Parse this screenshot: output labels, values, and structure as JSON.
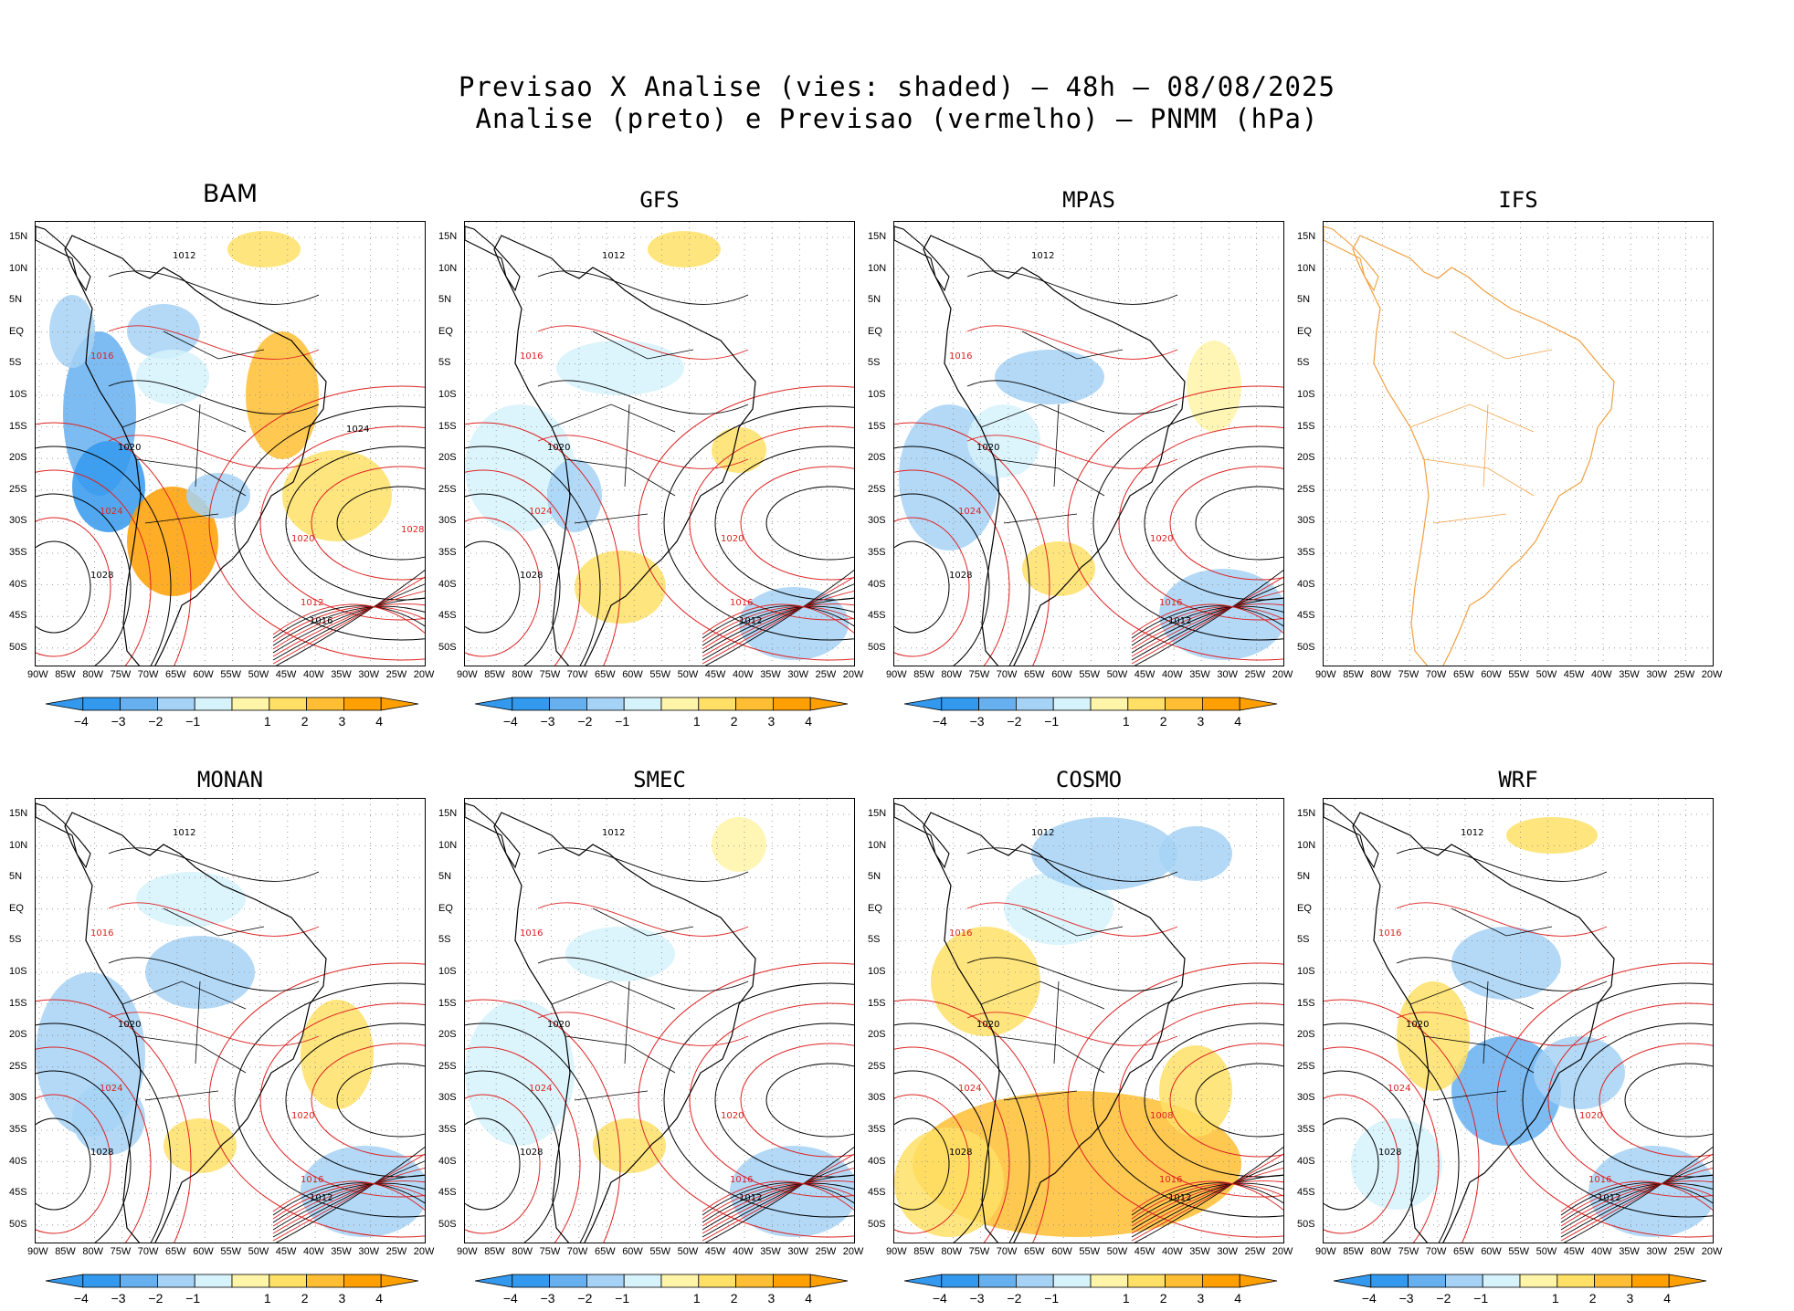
{
  "header": {
    "line1": "Previsao X Analise (vies: shaded) – 48h – 08/08/2025",
    "line2": "Analise (preto) e Previsao (vermelho) – PNMM (hPa)"
  },
  "lat_labels": [
    "15N",
    "10N",
    "5N",
    "EQ",
    "5S",
    "10S",
    "15S",
    "20S",
    "25S",
    "30S",
    "35S",
    "40S",
    "45S",
    "50S"
  ],
  "lon_labels": [
    "90W",
    "85W",
    "80W",
    "75W",
    "70W",
    "65W",
    "60W",
    "55W",
    "50W",
    "45W",
    "40W",
    "35W",
    "30W",
    "25W",
    "20W"
  ],
  "colorbar": {
    "labels": [
      "−4",
      "−3",
      "−2",
      "−1",
      "1",
      "2",
      "3",
      "4"
    ],
    "colors": [
      "#3399ee",
      "#66b0f0",
      "#a6d2f6",
      "#d6f2fb",
      "#ffffff",
      "#fff5a8",
      "#ffe066",
      "#ffbe33",
      "#ff9f00"
    ]
  },
  "panels": [
    {
      "name": "BAM",
      "has_colorbar": true
    },
    {
      "name": "GFS",
      "has_colorbar": true
    },
    {
      "name": "MPAS",
      "has_colorbar": true
    },
    {
      "name": "IFS",
      "has_colorbar": false
    },
    {
      "name": "MONAN",
      "has_colorbar": true
    },
    {
      "name": "SMEC",
      "has_colorbar": true
    },
    {
      "name": "COSMO",
      "has_colorbar": true
    },
    {
      "name": "WRF",
      "has_colorbar": true
    }
  ],
  "isobar_labels": {
    "BAM": [
      "1012",
      "1016",
      "1020",
      "1024",
      "1028",
      "1012",
      "1016",
      "1020",
      "1024",
      "1028"
    ],
    "GFS": [
      "1012",
      "1016",
      "1020",
      "1024",
      "1028",
      "1016",
      "1012",
      "1020"
    ],
    "MPAS": [
      "1012",
      "1016",
      "1020",
      "1024",
      "1028",
      "1016",
      "1012",
      "1020"
    ],
    "IFS": [],
    "MONAN": [
      "1012",
      "1016",
      "1020",
      "1024",
      "1028",
      "1016",
      "1012",
      "1020"
    ],
    "SMEC": [
      "1012",
      "1016",
      "1020",
      "1024",
      "1028",
      "1016",
      "1012",
      "1020"
    ],
    "COSMO": [
      "1012",
      "1016",
      "1020",
      "1024",
      "1028",
      "1016",
      "1012",
      "1008"
    ],
    "WRF": [
      "1012",
      "1016",
      "1020",
      "1024",
      "1028",
      "1016",
      "1012",
      "1020"
    ]
  },
  "colors": {
    "analysis_contour": "#000000",
    "forecast_contour": "#dd2222",
    "ifs_coast": "#f0a040"
  }
}
